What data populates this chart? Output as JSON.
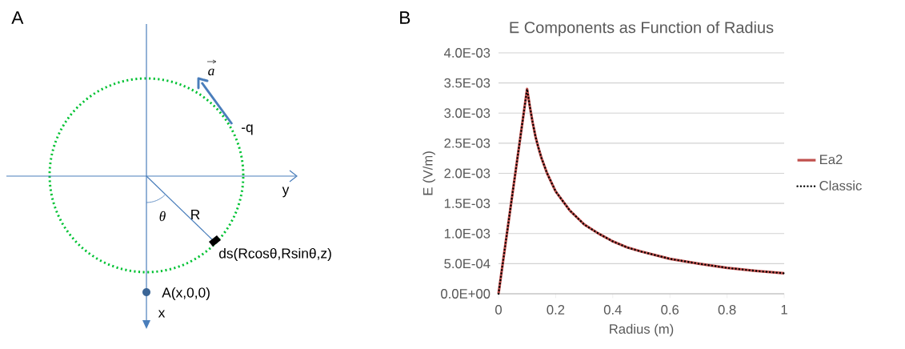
{
  "chart_data": [
    {
      "type": "other",
      "annotations": [
        "A",
        "y",
        "x",
        "R",
        "θ",
        "-q",
        "a",
        "ds(Rcosθ,Rsinθ,z)",
        "A(x,0,0)"
      ]
    },
    {
      "type": "line",
      "title": "E Components as Function of Radius",
      "xlabel": "Radius (m)",
      "ylabel": "E (V/m)",
      "annotations": [
        "B"
      ],
      "x": [
        0,
        0.1,
        0.11,
        0.12,
        0.13,
        0.14,
        0.15,
        0.17,
        0.2,
        0.25,
        0.3,
        0.35,
        0.4,
        0.45,
        0.5,
        0.6,
        0.7,
        0.8,
        0.9,
        1.0
      ],
      "series": [
        {
          "name": "Ea2",
          "color": "#c0504d",
          "line_style": "solid",
          "values": [
            0,
            0.0034,
            0.0031,
            0.00283,
            0.0026,
            0.00242,
            0.00226,
            0.002,
            0.0017,
            0.00138,
            0.00115,
            0.001,
            0.00087,
            0.00077,
            0.0007,
            0.00058,
            0.0005,
            0.00043,
            0.00038,
            0.00034
          ]
        },
        {
          "name": "Classic",
          "color": "#000000",
          "line_style": "dotted",
          "values": [
            0,
            0.0034,
            0.0031,
            0.00283,
            0.0026,
            0.00242,
            0.00226,
            0.002,
            0.0017,
            0.00138,
            0.00115,
            0.001,
            0.00087,
            0.00077,
            0.0007,
            0.00058,
            0.0005,
            0.00043,
            0.00038,
            0.00034
          ]
        }
      ],
      "xlim": [
        0,
        1
      ],
      "ylim": [
        0,
        0.004
      ],
      "xticks": [
        0,
        0.2,
        0.4,
        0.6,
        0.8,
        1
      ],
      "yticks": [
        {
          "value": 0,
          "label": "0.0E+00"
        },
        {
          "value": 0.0005,
          "label": "5.0E-04"
        },
        {
          "value": 0.001,
          "label": "1.0E-03"
        },
        {
          "value": 0.0015,
          "label": "1.5E-03"
        },
        {
          "value": 0.002,
          "label": "2.0E-03"
        },
        {
          "value": 0.0025,
          "label": "2.5E-03"
        },
        {
          "value": 0.003,
          "label": "3.0E-03"
        },
        {
          "value": 0.0035,
          "label": "3.5E-03"
        },
        {
          "value": 0.004,
          "label": "4.0E-03"
        }
      ],
      "grid": "y",
      "legend": "right",
      "marker": "none"
    }
  ]
}
